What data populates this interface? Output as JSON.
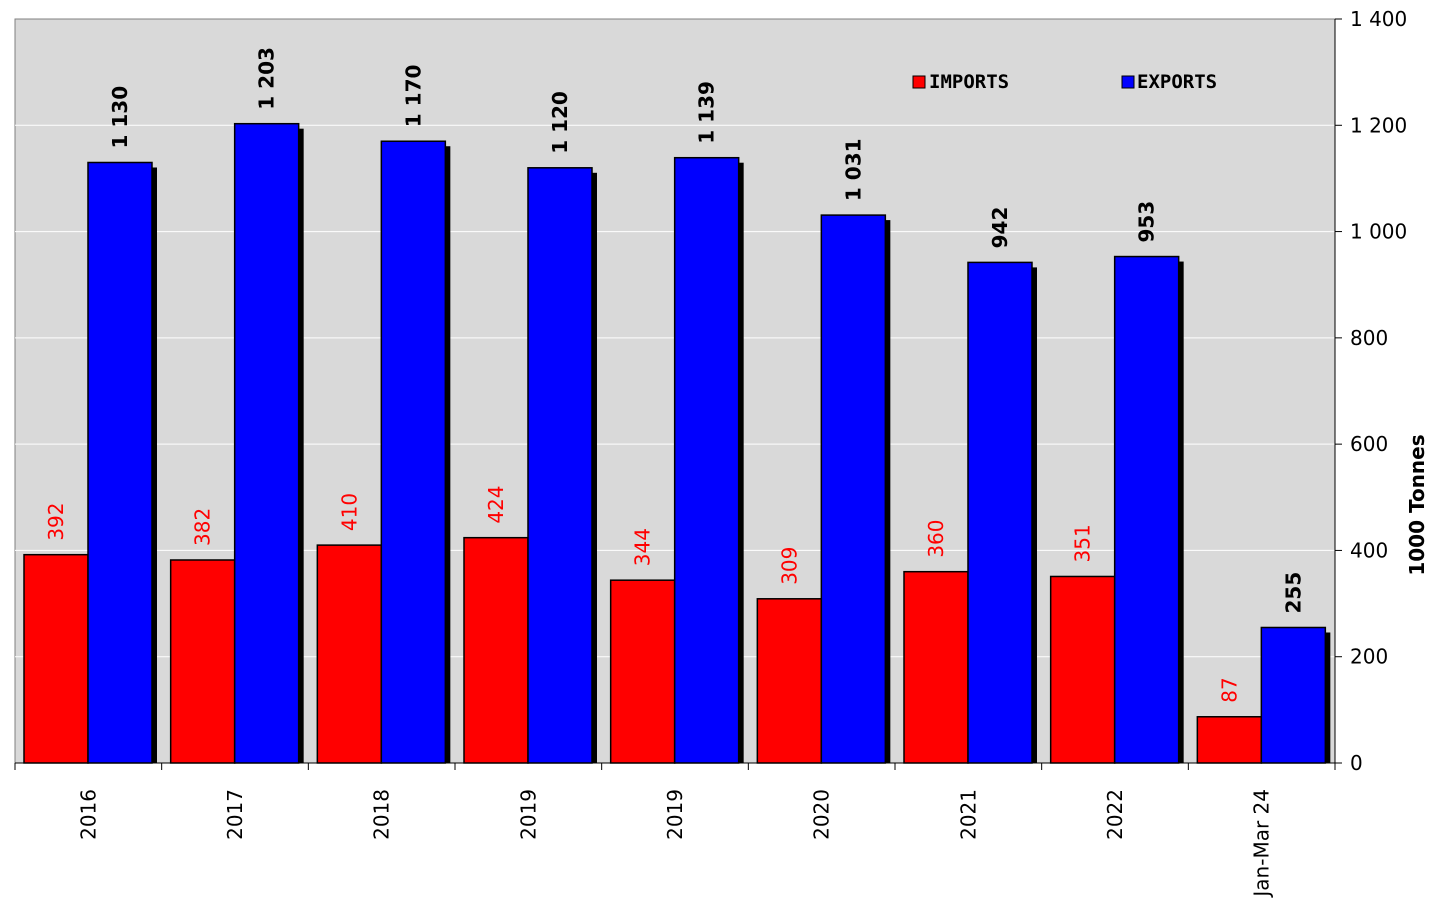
{
  "chart_data": {
    "type": "bar",
    "categories": [
      "2016",
      "2017",
      "2018",
      "2019",
      "2019",
      "2020",
      "2021",
      "2022",
      "Jan-Mar 24"
    ],
    "series": [
      {
        "name": "IMPORTS",
        "color": "#ff0000",
        "values": [
          392,
          382,
          410,
          424,
          344,
          309,
          360,
          351,
          87
        ],
        "labels": [
          "392",
          "382",
          "410",
          "424",
          "344",
          "309",
          "360",
          "351",
          "87"
        ]
      },
      {
        "name": "EXPORTS",
        "color": "#0000ff",
        "values": [
          1130,
          1203,
          1170,
          1120,
          1139,
          1031,
          942,
          953,
          255
        ],
        "labels": [
          "1 130",
          "1 203",
          "1 170",
          "1 120",
          "1 139",
          "1 031",
          "942",
          "953",
          "255"
        ]
      }
    ],
    "ylabel": "1000 Tonnes",
    "xlabel": "",
    "ylim": [
      0,
      1400
    ],
    "yticks": [
      0,
      200,
      400,
      600,
      800,
      1000,
      1200,
      1400
    ],
    "ytick_labels": [
      "0",
      "200",
      "400",
      "600",
      "800",
      "1 000",
      "1 200",
      "1 400"
    ],
    "y_axis_side": "right",
    "grid": true,
    "legend_position": "top-right",
    "plot_background": "#d9d9d9"
  }
}
